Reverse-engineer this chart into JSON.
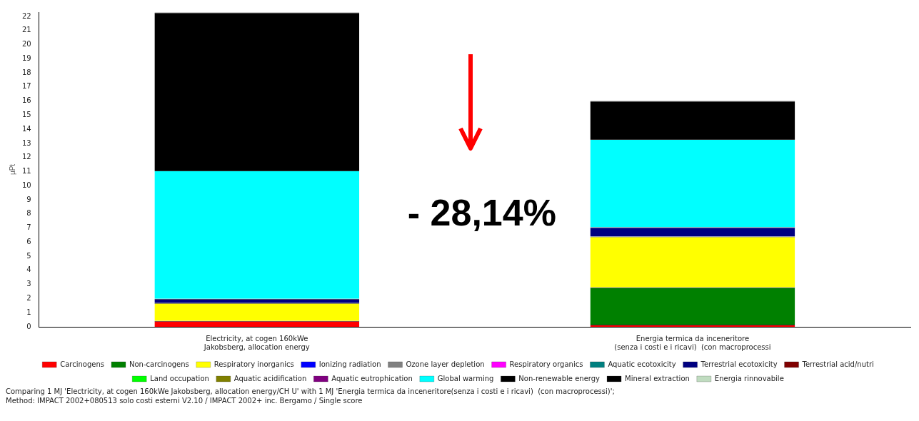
{
  "chart_data": {
    "type": "bar",
    "stacked": true,
    "ylabel": "µPt",
    "ylim": [
      0,
      22.3
    ],
    "yticks": [
      0,
      1,
      2,
      3,
      4,
      5,
      6,
      7,
      8,
      9,
      10,
      11,
      12,
      13,
      14,
      15,
      16,
      17,
      18,
      19,
      20,
      21,
      22
    ],
    "grid": false,
    "legend": "bottom",
    "categories": [
      "Electricity, at cogen 160kWe\nJakobsberg, allocation energy",
      "Energia termica da inceneritore\n(senza i costi e i ricavi)  (con macroprocessi"
    ],
    "series": [
      {
        "name": "Carcinogens",
        "color": "#ff0000",
        "values": [
          0.42,
          0.15
        ]
      },
      {
        "name": "Non-carcinogens",
        "color": "#008000",
        "values": [
          0,
          2.65
        ]
      },
      {
        "name": "Respiratory inorganics",
        "color": "#ffff00",
        "values": [
          1.26,
          3.6
        ]
      },
      {
        "name": "Ionizing radiation",
        "color": "#0000ff",
        "values": [
          0,
          0
        ]
      },
      {
        "name": "Ozone layer depletion",
        "color": "#808080",
        "values": [
          0,
          0
        ]
      },
      {
        "name": "Respiratory organics",
        "color": "#ff00ff",
        "values": [
          0,
          0
        ]
      },
      {
        "name": "Aquatic ecotoxicity",
        "color": "#008080",
        "values": [
          0,
          0
        ]
      },
      {
        "name": "Terrestrial ecotoxicity",
        "color": "#000080",
        "values": [
          0.3,
          0.65
        ]
      },
      {
        "name": "Terrestrial acid/nutri",
        "color": "#800000",
        "values": [
          0,
          0
        ]
      },
      {
        "name": "Land occupation",
        "color": "#00ff00",
        "values": [
          0,
          0
        ]
      },
      {
        "name": "Aquatic acidification",
        "color": "#808000",
        "values": [
          0,
          0
        ]
      },
      {
        "name": "Aquatic eutrophication",
        "color": "#800080",
        "values": [
          0,
          0
        ]
      },
      {
        "name": "Global warming",
        "color": "#00ffff",
        "values": [
          9.1,
          6.25
        ]
      },
      {
        "name": "Non-renewable energy",
        "color": "#000000",
        "values": [
          11.2,
          2.7
        ]
      },
      {
        "name": "Mineral extraction",
        "color": "#000000",
        "values": [
          0,
          0
        ]
      },
      {
        "name": "Energia rinnovabile",
        "color": "#c0dcc0",
        "values": [
          0,
          0
        ]
      }
    ],
    "annotations": [
      "- 28,14%",
      "Comparing 1 MJ 'Electricity, at cogen 160kWe Jakobsberg, allocation energy/CH U' with 1 MJ 'Energia termica da inceneritore(senza i costi e i ricavi)  (con macroprocessi)';",
      "Method: IMPACT 2002+080513 solo costi esterni V2.10 / IMPACT 2002+ inc. Bergamo / Single score"
    ]
  }
}
